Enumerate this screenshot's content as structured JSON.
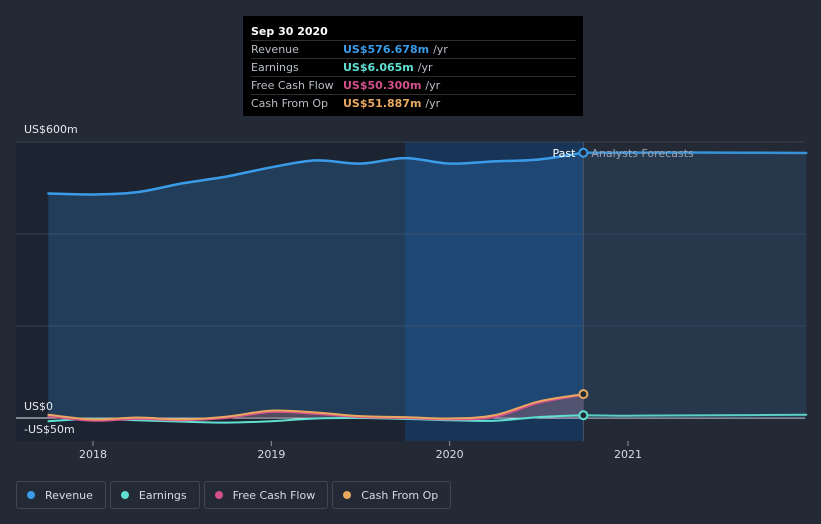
{
  "tooltip": {
    "date": "Sep 30 2020",
    "rows": [
      {
        "label": "Revenue",
        "value": "US$576.678m",
        "unit": "/yr",
        "color": "#3a9ce8"
      },
      {
        "label": "Earnings",
        "value": "US$6.065m",
        "unit": "/yr",
        "color": "#5fe0d3"
      },
      {
        "label": "Free Cash Flow",
        "value": "US$50.300m",
        "unit": "/yr",
        "color": "#d4508c"
      },
      {
        "label": "Cash From Op",
        "value": "US$51.887m",
        "unit": "/yr",
        "color": "#e9a860"
      }
    ]
  },
  "chart_data": {
    "type": "line",
    "y_axis_labels": [
      "US$600m",
      "US$0",
      "-US$50m"
    ],
    "ylim": [
      -50,
      600
    ],
    "xlim": [
      2017.75,
      2022.0
    ],
    "x_ticks": [
      2018,
      2019,
      2020,
      2021
    ],
    "x_tick_labels": [
      "2018",
      "2019",
      "2020",
      "2021"
    ],
    "past_label": "Past",
    "forecast_label": "Analysts Forecasts",
    "divider_x": 2020.75,
    "highlight_start": 2019.75,
    "series": [
      {
        "name": "Revenue",
        "color": "#3a9ce8",
        "x": [
          2017.75,
          2018.0,
          2018.25,
          2018.5,
          2018.75,
          2019.0,
          2019.25,
          2019.5,
          2019.75,
          2020.0,
          2020.25,
          2020.5,
          2020.75
        ],
        "values": [
          488,
          486,
          491,
          510,
          525,
          545,
          560,
          553,
          565,
          553,
          558,
          562,
          576.678
        ]
      },
      {
        "name": "Revenue forecast",
        "color": "#3a9ce8",
        "x": [
          2020.75,
          2021.0,
          2021.5,
          2022.0
        ],
        "values": [
          576.678,
          577,
          577,
          576
        ]
      },
      {
        "name": "Earnings",
        "color": "#5fe0d3",
        "x": [
          2017.75,
          2018.0,
          2018.25,
          2018.5,
          2018.75,
          2019.0,
          2019.25,
          2019.5,
          2019.75,
          2020.0,
          2020.25,
          2020.5,
          2020.75
        ],
        "values": [
          -7,
          -2,
          -5,
          -8,
          -10,
          -7,
          -1,
          0,
          -2,
          -5,
          -6,
          2,
          6.065
        ]
      },
      {
        "name": "Earnings forecast",
        "color": "#5fe0d3",
        "x": [
          2020.75,
          2021.0,
          2021.5,
          2022.0
        ],
        "values": [
          6.065,
          5,
          6,
          7
        ]
      },
      {
        "name": "Free Cash Flow",
        "color": "#d4508c",
        "x": [
          2017.75,
          2018.0,
          2018.25,
          2018.5,
          2018.75,
          2019.0,
          2019.25,
          2019.5,
          2019.75,
          2020.0,
          2020.25,
          2020.5,
          2020.75
        ],
        "values": [
          4,
          -6,
          -2,
          -5,
          0,
          13,
          9,
          2,
          0,
          -3,
          2,
          33,
          50.3
        ]
      },
      {
        "name": "Cash From Op",
        "color": "#e9a860",
        "x": [
          2017.75,
          2018.0,
          2018.25,
          2018.5,
          2018.75,
          2019.0,
          2019.25,
          2019.5,
          2019.75,
          2020.0,
          2020.25,
          2020.5,
          2020.75
        ],
        "values": [
          7,
          -3,
          1,
          -3,
          3,
          16,
          12,
          4,
          2,
          -1,
          6,
          36,
          51.887
        ]
      }
    ]
  },
  "legend": [
    {
      "label": "Revenue",
      "color": "#3a9ce8"
    },
    {
      "label": "Earnings",
      "color": "#5fe0d3"
    },
    {
      "label": "Free Cash Flow",
      "color": "#d4508c"
    },
    {
      "label": "Cash From Op",
      "color": "#e9a860"
    }
  ]
}
